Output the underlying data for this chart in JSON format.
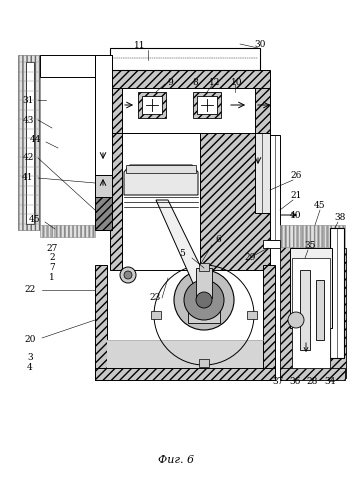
{
  "title": "Фиг. 6",
  "title_fontsize": 8,
  "bg_color": "#ffffff",
  "fig_width": 3.53,
  "fig_height": 4.99,
  "dpi": 100
}
